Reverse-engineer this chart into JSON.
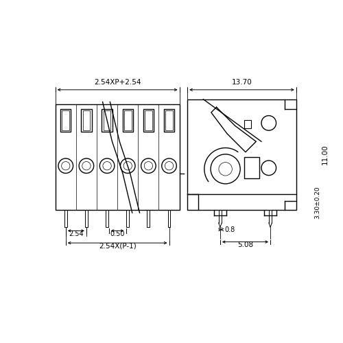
{
  "bg_color": "#ffffff",
  "line_color": "#000000",
  "fig_width": 5.0,
  "fig_height": 5.0,
  "dpi": 100,
  "dim_labels": {
    "top_width": "2.54XP+2.54",
    "right_width": "13.70",
    "bottom_pitch": "2.54X(P-1)",
    "pin_spacing": "2.54",
    "gap": "0.50",
    "height_total": "11.00",
    "height_partial": "3.30±0.20",
    "pin_width": "0.8",
    "pin_pitch_side": "5.08"
  }
}
